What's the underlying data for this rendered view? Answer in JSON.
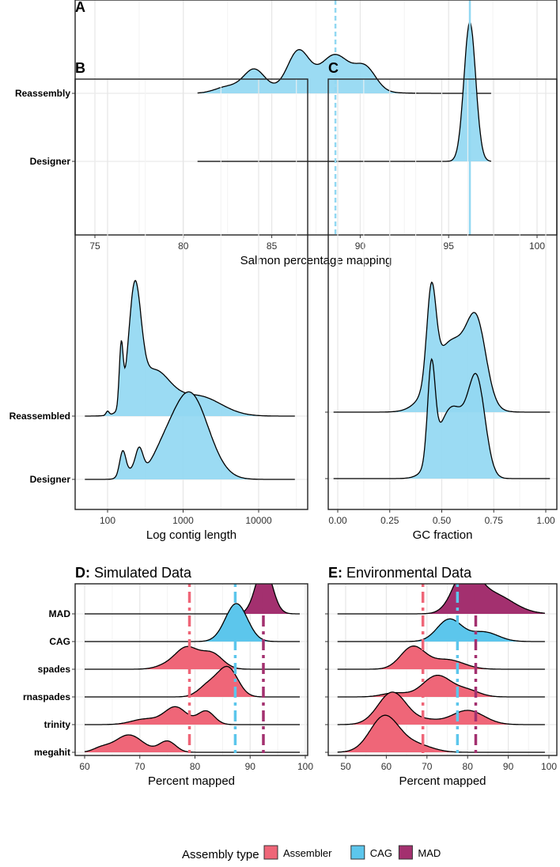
{
  "colors": {
    "ridge_fill": "#92d8f2",
    "Assembler": "#ef6678",
    "CAG": "#5cc6ec",
    "MAD": "#a3306f",
    "mean_line_light": "#92d8f2"
  },
  "legend": {
    "title": "Assembly type",
    "items": [
      {
        "label": "Assembler",
        "color": "#ef6678"
      },
      {
        "label": "CAG",
        "color": "#5cc6ec"
      },
      {
        "label": "MAD",
        "color": "#a3306f"
      }
    ]
  },
  "chart_data": [
    {
      "id": "A",
      "type": "ridgeline",
      "title_bold": "A",
      "title": "",
      "xlabel": "Salmon percentage mapping",
      "xscale": "linear",
      "xlim": [
        74,
        101
      ],
      "xticks": [
        75,
        80,
        85,
        90,
        95,
        100
      ],
      "xtick_labels": [
        "75",
        "80",
        "85",
        "90",
        "95",
        "100"
      ],
      "minor_xticks": [
        77.5,
        82.5,
        87.5,
        92.5,
        97.5
      ],
      "rows": [
        {
          "label": "Reassembly",
          "group": "default",
          "range": [
            80.8,
            97.4
          ],
          "components": [
            [
              82.5,
              0.7,
              0.08
            ],
            [
              84,
              0.6,
              0.28
            ],
            [
              86.5,
              0.6,
              0.45
            ],
            [
              88.6,
              0.8,
              0.4
            ],
            [
              90.3,
              0.6,
              0.28
            ],
            [
              87.5,
              2,
              0.1
            ]
          ]
        },
        {
          "label": "Designer",
          "group": "default",
          "range": [
            80.8,
            97.4
          ],
          "components": [
            [
              96.2,
              0.33,
              1.76
            ]
          ]
        }
      ],
      "vlines": [
        {
          "x": 88.6,
          "style": "dashed",
          "color": "#92d8f2"
        },
        {
          "x": 96.2,
          "style": "solid",
          "color": "#92d8f2"
        }
      ]
    },
    {
      "id": "B",
      "type": "ridgeline",
      "title_bold": "B",
      "title": "",
      "xlabel": "Log contig length",
      "xscale": "log10",
      "xlim": [
        1.6,
        4.6
      ],
      "xticks": [
        2,
        3,
        4
      ],
      "xtick_labels": [
        "100",
        "1000",
        "10000"
      ],
      "minor_xticks": [
        2.5,
        3.5,
        4.5
      ],
      "rows": [
        {
          "label": "Reassembled",
          "group": "default",
          "range": [
            1.7,
            4.48
          ],
          "components": [
            [
              2.0,
              0.02,
              0.05
            ],
            [
              2.18,
              0.025,
              0.75
            ],
            [
              2.36,
              0.08,
              1.4
            ],
            [
              2.6,
              0.22,
              0.55
            ],
            [
              3.2,
              0.3,
              0.25
            ]
          ]
        },
        {
          "label": "Designer",
          "group": "default",
          "range": [
            1.7,
            4.48
          ],
          "components": [
            [
              2.2,
              0.04,
              0.3
            ],
            [
              2.42,
              0.05,
              0.3
            ],
            [
              2.3,
              0.1,
              0.1
            ],
            [
              2.7,
              0.15,
              0.15
            ],
            [
              3.08,
              0.25,
              1.1
            ]
          ]
        }
      ],
      "vlines": []
    },
    {
      "id": "C",
      "type": "ridgeline",
      "title_bold": "C",
      "title": "",
      "xlabel": "GC fraction",
      "xscale": "linear",
      "xlim": [
        -0.05,
        1.05
      ],
      "xticks": [
        0,
        0.25,
        0.5,
        0.75,
        1
      ],
      "xtick_labels": [
        "0.00",
        "0.25",
        "0.50",
        "0.75",
        "1.00"
      ],
      "minor_xticks": [
        0.125,
        0.375,
        0.625,
        0.875
      ],
      "rows": [
        {
          "label": "Reassembled",
          "group": "default",
          "range": [
            -0.02,
            1.02
          ],
          "components": [
            [
              0.45,
              0.022,
              1.15
            ],
            [
              0.55,
              0.09,
              0.9
            ],
            [
              0.67,
              0.045,
              0.85
            ]
          ]
        },
        {
          "label": "Designer",
          "group": "default",
          "range": [
            -0.02,
            1.02
          ],
          "components": [
            [
              0.45,
              0.018,
              1.18
            ],
            [
              0.55,
              0.07,
              0.9
            ],
            [
              0.67,
              0.04,
              1.1
            ]
          ]
        }
      ],
      "vlines": []
    },
    {
      "id": "D",
      "type": "ridgeline",
      "title_bold": "D:",
      "title": "Simulated Data",
      "xlabel": "Percent mapped",
      "xscale": "linear",
      "xlim": [
        58,
        101
      ],
      "xticks": [
        60,
        70,
        80,
        90,
        100
      ],
      "xtick_labels": [
        "60",
        "70",
        "80",
        "90",
        "100"
      ],
      "minor_xticks": [
        65,
        75,
        85,
        95
      ],
      "rows": [
        {
          "label": "MAD",
          "group": "MAD",
          "range": [
            60,
            99
          ],
          "components": [
            [
              92.5,
              1.5,
              0.6
            ]
          ]
        },
        {
          "label": "CAG",
          "group": "CAG",
          "range": [
            60,
            99
          ],
          "components": [
            [
              87.5,
              2,
              0.48
            ]
          ]
        },
        {
          "label": "spades",
          "group": "Assembler",
          "range": [
            60,
            99
          ],
          "components": [
            [
              78.5,
              2,
              0.26
            ],
            [
              83,
              2,
              0.2
            ],
            [
              75,
              2,
              0.05
            ]
          ]
        },
        {
          "label": "rnaspades",
          "group": "Assembler",
          "range": [
            60,
            99
          ],
          "components": [
            [
              86,
              1.8,
              0.36
            ],
            [
              82.5,
              1.8,
              0.15
            ]
          ]
        },
        {
          "label": "trinity",
          "group": "Assembler",
          "range": [
            60,
            99
          ],
          "components": [
            [
              76.5,
              2,
              0.22
            ],
            [
              82,
              1.5,
              0.17
            ],
            [
              71,
              2.5,
              0.07
            ]
          ]
        },
        {
          "label": "megahit",
          "group": "Assembler",
          "range": [
            60,
            99
          ],
          "components": [
            [
              68,
              2.5,
              0.22
            ],
            [
              75,
              1.5,
              0.14
            ],
            [
              63,
              1.5,
              0.05
            ]
          ]
        }
      ],
      "vlines": [
        {
          "x": 79,
          "style": "dotdash",
          "color": "#ef6678"
        },
        {
          "x": 87.3,
          "style": "dotdash",
          "color": "#5cc6ec"
        },
        {
          "x": 92.4,
          "style": "dotdash",
          "color": "#a3306f"
        }
      ]
    },
    {
      "id": "E",
      "type": "ridgeline",
      "title_bold": "E:",
      "title": "Environmental Data",
      "xlabel": "Percent mapped",
      "xscale": "linear",
      "xlim": [
        46,
        101
      ],
      "xticks": [
        50,
        60,
        70,
        80,
        90,
        100
      ],
      "xtick_labels": [
        "50",
        "60",
        "70",
        "80",
        "90",
        "100"
      ],
      "minor_xticks": [
        55,
        65,
        75,
        85,
        95
      ],
      "rows": [
        {
          "label": "MAD",
          "group": "MAD",
          "range": [
            48,
            99
          ],
          "components": [
            [
              79.5,
              3,
              0.5
            ],
            [
              86,
              5,
              0.25
            ]
          ]
        },
        {
          "label": "CAG",
          "group": "CAG",
          "range": [
            48,
            99
          ],
          "components": [
            [
              75.5,
              3,
              0.28
            ],
            [
              84,
              3.5,
              0.12
            ]
          ]
        },
        {
          "label": "spades",
          "group": "Assembler",
          "range": [
            48,
            99
          ],
          "components": [
            [
              66.5,
              3,
              0.28
            ],
            [
              75,
              4,
              0.12
            ]
          ]
        },
        {
          "label": "rnaspades",
          "group": "Assembler",
          "range": [
            48,
            99
          ],
          "components": [
            [
              72.5,
              3.5,
              0.27
            ],
            [
              80,
              3,
              0.08
            ],
            [
              62,
              3,
              0.05
            ]
          ]
        },
        {
          "label": "trinity",
          "group": "Assembler",
          "range": [
            48,
            99
          ],
          "components": [
            [
              61.5,
              3.5,
              0.41
            ],
            [
              80,
              4,
              0.18
            ],
            [
              70,
              3,
              0.05
            ]
          ]
        },
        {
          "label": "megahit",
          "group": "Assembler",
          "range": [
            48,
            99
          ],
          "components": [
            [
              59.5,
              3.5,
              0.45
            ],
            [
              67,
              4,
              0.1
            ]
          ]
        }
      ],
      "vlines": [
        {
          "x": 69,
          "style": "dotdash",
          "color": "#ef6678"
        },
        {
          "x": 77.5,
          "style": "dotdash",
          "color": "#5cc6ec"
        },
        {
          "x": 82,
          "style": "dotdash",
          "color": "#a3306f"
        }
      ]
    }
  ]
}
